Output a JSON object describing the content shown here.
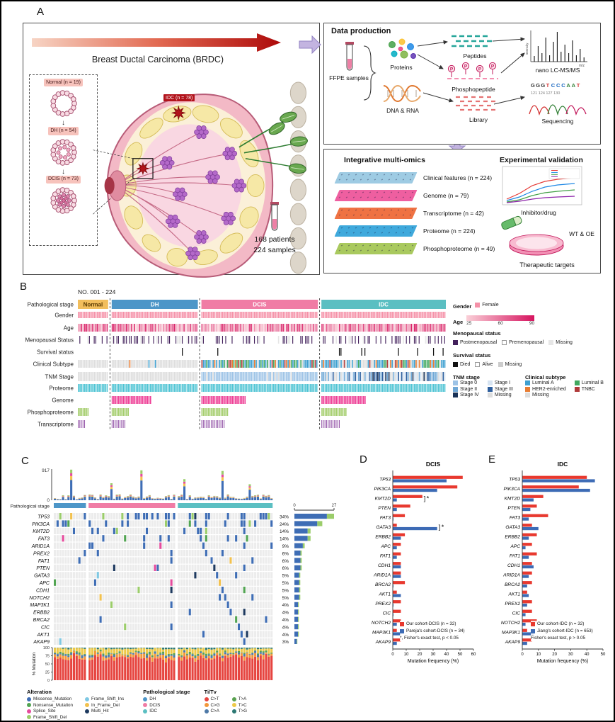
{
  "labels": {
    "a": "A",
    "b": "B",
    "c": "C",
    "d": "D",
    "e": "E"
  },
  "panel_a": {
    "banner_title": "Breast Ductal Carcinoma (BRDC)",
    "stages": [
      {
        "label": "Normal (n = 19)"
      },
      {
        "label": "DH (n = 54)"
      },
      {
        "label": "DCIS (n = 73)"
      }
    ],
    "idc_label": "IDC (n = 78)",
    "patients": "168 patients",
    "samples": "224 samples",
    "data_production": {
      "title": "Data production",
      "ffpe_label": "FFPE samples",
      "proteins_label": "Proteins",
      "dna_label": "DNA & RNA",
      "peptides_label": "Peptides",
      "phospho_label": "Phosphopeptide",
      "library_label": "Library",
      "ms_label": "nano LC-MS/MS",
      "ms_xlabel": "m/z",
      "ms_ylabel": "Intensity",
      "seq_label": "Sequencing",
      "seq_bases": [
        {
          "t": "G",
          "c": "#333333"
        },
        {
          "t": "G",
          "c": "#333333"
        },
        {
          "t": "G",
          "c": "#333333"
        },
        {
          "t": "T",
          "c": "#D32F2F"
        },
        {
          "t": "C",
          "c": "#1565C0"
        },
        {
          "t": "C",
          "c": "#1565C0"
        },
        {
          "t": "C",
          "c": "#1565C0"
        },
        {
          "t": "A",
          "c": "#2E7D32"
        },
        {
          "t": "A",
          "c": "#2E7D32"
        },
        {
          "t": "T",
          "c": "#D32F2F"
        }
      ],
      "seq_numbers": [
        "121",
        "124",
        "127",
        "130"
      ]
    },
    "multiomics": {
      "title": "Integrative multi-omics",
      "layers": [
        {
          "label": "Clinical features (n = 224)",
          "color": "#9ECBE3"
        },
        {
          "label": "Genome (n = 79)",
          "color": "#EE5FA0"
        },
        {
          "label": "Transcriptome (n = 42)",
          "color": "#EF7243"
        },
        {
          "label": "Proteome (n = 224)",
          "color": "#3FA9DC"
        },
        {
          "label": "Phosphoproteome (n = 49)",
          "color": "#A9C95E"
        }
      ]
    },
    "validation": {
      "title": "Experimental validation",
      "inhibitor_label": "Inhibitor/drug",
      "wtoe_label": "WT & OE",
      "targets_label": "Therapeutic targets"
    }
  },
  "panel_b": {
    "header": "NO. 001 - 224",
    "row_labels": [
      "Pathological stage",
      "Gender",
      "Age",
      "Menopausal Status",
      "Survival status",
      "Clinical Subtype",
      "TNM Stage",
      "Proteome",
      "Genome",
      "Phosphoproteome",
      "Transcriptome"
    ],
    "stage_groups": [
      {
        "label": "Normal",
        "n": 19,
        "color": "#F2BE5C"
      },
      {
        "label": "DH",
        "n": 54,
        "color": "#4D96C8"
      },
      {
        "label": "DCIS",
        "n": 73,
        "color": "#F07CA5"
      },
      {
        "label": "IDC",
        "n": 78,
        "color": "#5BBFC2"
      }
    ],
    "colors": {
      "female": "#F591A8",
      "age_low": "#FAD0D8",
      "age_high": "#D6145F",
      "postmenopausal": "#43215C",
      "died": "#111111",
      "missing_light": "#E6E6E6",
      "proteome": "#4FC4D4",
      "genome": "#EE3F96",
      "phospho": "#A5CE6E",
      "transcript": "#9455A8",
      "tnm": {
        "s0": "#9DC3E6",
        "s1": "#D7E4F2",
        "s2": "#6FA8D6",
        "s3": "#2E5F9E",
        "s4": "#1A3358",
        "missing": "#DDDDDD"
      },
      "subtype": {
        "luma": "#3FA0D0",
        "lumb": "#41A85F",
        "her2": "#E87D33",
        "tnbc": "#B03A3A",
        "missing": "#DDDDDD"
      }
    },
    "legends": {
      "gender": {
        "title": "Gender",
        "items": [
          {
            "label": "Female",
            "color": "#F591A8"
          }
        ]
      },
      "age": {
        "title": "Age",
        "ticks": [
          "25",
          "60",
          "90"
        ]
      },
      "menopausal": {
        "title": "Menopausal status",
        "items": [
          {
            "label": "Postmenopausal",
            "color": "#43215C"
          },
          {
            "label": "Premenopausal",
            "color": "#FFFFFF"
          },
          {
            "label": "Missing",
            "color": "#E6E6E6"
          }
        ]
      },
      "survival": {
        "title": "Survival status",
        "items": [
          {
            "label": "Died",
            "color": "#111111"
          },
          {
            "label": "Alive",
            "color": "#FFFFFF"
          },
          {
            "label": "Missing",
            "color": "#CCCCCC"
          }
        ]
      },
      "tnm": {
        "title": "TNM stage",
        "items": [
          {
            "label": "Stage 0",
            "color": "#9DC3E6"
          },
          {
            "label": "Stage I",
            "color": "#D7E4F2"
          },
          {
            "label": "Stage II",
            "color": "#6FA8D6"
          },
          {
            "label": "Stage III",
            "color": "#2E5F9E"
          },
          {
            "label": "Stage IV",
            "color": "#1A3358"
          },
          {
            "label": "Missing",
            "color": "#DDDDDD"
          }
        ]
      },
      "subtype": {
        "title": "Clinical subtype",
        "items": [
          {
            "label": "Luminal A",
            "color": "#3FA0D0"
          },
          {
            "label": "Luminal B",
            "color": "#41A85F"
          },
          {
            "label": "HER2-enriched",
            "color": "#E87D33"
          },
          {
            "label": "TNBC",
            "color": "#B03A3A"
          },
          {
            "label": "Missing",
            "color": "#DDDDDD"
          }
        ]
      }
    }
  },
  "panel_c": {
    "stage_label": "Pathological stage",
    "tmb_max": "917",
    "tmb_min": "0",
    "count_axis": [
      "0",
      "27"
    ],
    "genes": [
      {
        "name": "TP53",
        "pct": "34%",
        "count": 27
      },
      {
        "name": "PIK3CA",
        "pct": "24%",
        "count": 19
      },
      {
        "name": "KMT2D",
        "pct": "14%",
        "count": 11
      },
      {
        "name": "FAT3",
        "pct": "14%",
        "count": 11
      },
      {
        "name": "ARID1A",
        "pct": "9%",
        "count": 7
      },
      {
        "name": "PREX2",
        "pct": "6%",
        "count": 5
      },
      {
        "name": "FAT1",
        "pct": "6%",
        "count": 5
      },
      {
        "name": "PTEN",
        "pct": "6%",
        "count": 5
      },
      {
        "name": "GATA3",
        "pct": "5%",
        "count": 4
      },
      {
        "name": "APC",
        "pct": "5%",
        "count": 4
      },
      {
        "name": "CDH1",
        "pct": "5%",
        "count": 4
      },
      {
        "name": "NOTCH2",
        "pct": "5%",
        "count": 4
      },
      {
        "name": "MAP3K1",
        "pct": "4%",
        "count": 3
      },
      {
        "name": "ERBB2",
        "pct": "4%",
        "count": 3
      },
      {
        "name": "BRCA2",
        "pct": "4%",
        "count": 3
      },
      {
        "name": "CIC",
        "pct": "4%",
        "count": 3
      },
      {
        "name": "AKT1",
        "pct": "4%",
        "count": 3
      },
      {
        "name": "AKAP9",
        "pct": "3%",
        "count": 2
      }
    ],
    "mutation_ylabel": "% Mutation",
    "mutation_ticks": [
      "100",
      "75",
      "50",
      "25",
      "0"
    ],
    "legend_alteration": {
      "title": "Alteration",
      "items": [
        {
          "label": "Missense_Mutation",
          "color": "#3E6DB5"
        },
        {
          "label": "Nonsense_Mutation",
          "color": "#52A552"
        },
        {
          "label": "Splice_Site",
          "color": "#E64B9D"
        },
        {
          "label": "Frame_Shift_Del",
          "color": "#9BCD6A"
        },
        {
          "label": "Frame_Shift_Ins",
          "color": "#7EC8E3"
        },
        {
          "label": "In_Frame_Del",
          "color": "#F2C14E"
        },
        {
          "label": "Multi_Hit",
          "color": "#1E3A5F"
        }
      ]
    },
    "legend_stage": {
      "title": "Pathological stage",
      "items": [
        {
          "label": "DH",
          "color": "#4D96C8"
        },
        {
          "label": "DCIS",
          "color": "#F07CA5"
        },
        {
          "label": "IDC",
          "color": "#5BBFC2"
        }
      ]
    },
    "legend_titv": {
      "title": "Ti/Tv",
      "items": [
        {
          "label": "C>T",
          "color": "#E64540"
        },
        {
          "label": "C>G",
          "color": "#F2973A"
        },
        {
          "label": "C>A",
          "color": "#4E79A7"
        },
        {
          "label": "T>A",
          "color": "#59A14F"
        },
        {
          "label": "T>C",
          "color": "#EDC948"
        },
        {
          "label": "T>G",
          "color": "#2C7873"
        }
      ]
    }
  },
  "panel_d": {
    "title": "DCIS",
    "xlabel": "Mutation frequency (%)",
    "x_ticks": [
      "0",
      "10",
      "20",
      "30",
      "40",
      "50",
      "60"
    ],
    "xmax": 60,
    "legend": [
      {
        "label": "Our cohort-DCIS (n = 32)",
        "color": "#E8392F"
      },
      {
        "label": "Pareja's cohort-DCIS (n = 34)",
        "color": "#3D6BB5"
      }
    ],
    "note": "*, Fisher's exact test, p < 0.05",
    "genes": [
      "TP53",
      "PIK3CA",
      "KMT2D",
      "PTEN",
      "FAT3",
      "GATA3",
      "ERBB2",
      "APC",
      "FAT1",
      "CDH1",
      "ARID1A",
      "BRCA2",
      "AKT1",
      "PREX2",
      "CIC",
      "NOTCH2",
      "MAP3K1",
      "AKAP9"
    ],
    "our": [
      52,
      48,
      22,
      13,
      9,
      3,
      9,
      6,
      6,
      6,
      6,
      9,
      3,
      6,
      6,
      6,
      3,
      6
    ],
    "other": [
      40,
      33,
      3,
      3,
      0,
      33,
      6,
      3,
      3,
      6,
      6,
      0,
      6,
      0,
      0,
      3,
      6,
      3
    ],
    "starred": [
      "KMT2D",
      "GATA3"
    ]
  },
  "panel_e": {
    "title": "IDC",
    "xlabel": "Mutation frequency (%)",
    "x_ticks": [
      "0",
      "10",
      "20",
      "30",
      "40",
      "50"
    ],
    "xmax": 50,
    "legend": [
      {
        "label": "Our cohort-IDC (n = 32)",
        "color": "#E8392F"
      },
      {
        "label": "Jiang's cohort-IDC (n = 653)",
        "color": "#3D6BB5"
      }
    ],
    "note": "Fisher's exact test, p > 0.05",
    "genes": [
      "TP53",
      "PIK3CA",
      "KMT2D",
      "PTEN",
      "FAT3",
      "GATA3",
      "ERBB2",
      "APC",
      "FAT1",
      "CDH1",
      "ARID1A",
      "BRCA2",
      "AKT1",
      "PREX2",
      "CIC",
      "NOTCH2",
      "MAP3K1",
      "AKAP9"
    ],
    "our": [
      40,
      35,
      13,
      9,
      16,
      6,
      9,
      6,
      9,
      6,
      6,
      6,
      3,
      6,
      6,
      9,
      3,
      6
    ],
    "other": [
      45,
      42,
      7,
      5,
      4,
      10,
      4,
      2,
      4,
      7,
      4,
      3,
      4,
      3,
      2,
      2,
      7,
      3
    ],
    "starred": []
  }
}
